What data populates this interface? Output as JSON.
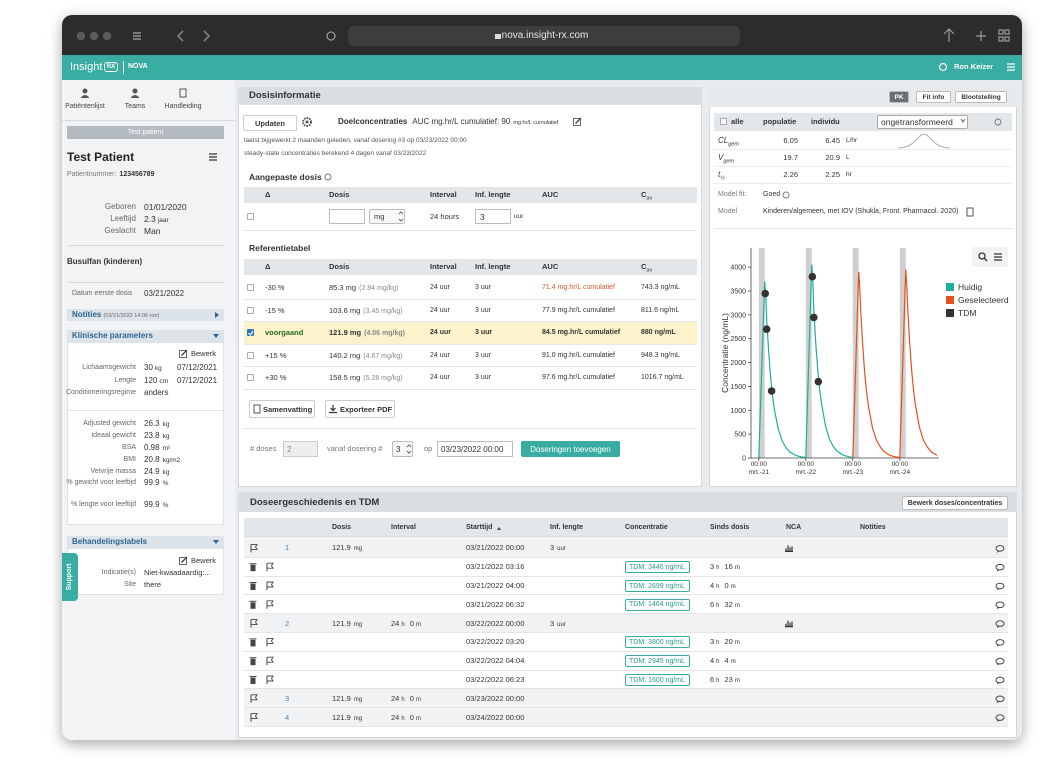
{
  "browser": {
    "url": "nova.insight-rx.com"
  },
  "appbar": {
    "brand": "Insight",
    "badge": "RX",
    "product": "NOVA",
    "user": "Ron Keizer"
  },
  "sidebar": {
    "nav": [
      "Patiëntenlijst",
      "Teams",
      "Handleiding"
    ],
    "patient_button": "Test patient",
    "name": "Test Patient",
    "patient_number_label": "Patientnummer:",
    "patient_number": "123456789",
    "demographics": [
      {
        "label": "Geboren",
        "value": "01/01/2020"
      },
      {
        "label": "Leeftijd",
        "value": "2.3",
        "unit": "jaar"
      },
      {
        "label": "Geslacht",
        "value": "Man"
      }
    ],
    "drug": "Busulfan (kinderen)",
    "first_dose": {
      "label": "Datum eerste dosis",
      "value": "03/21/2022"
    },
    "notes": {
      "title": "Notities",
      "date": "(03/21/2022 14:06 ron)"
    },
    "clinical": {
      "title": "Klinische parameters",
      "edit": "Bewerk",
      "measured": [
        {
          "label": "Lichaamsgewicht",
          "value": "30",
          "unit": "kg",
          "date": "07/12/2021"
        },
        {
          "label": "Lengte",
          "value": "120",
          "unit": "cm",
          "date": "07/12/2021"
        },
        {
          "label": "Conditioneringsregime",
          "value": "anders"
        }
      ],
      "derived": [
        {
          "label": "Adjusted gewicht",
          "value": "26.3",
          "unit": "kg"
        },
        {
          "label": "Ideaal gewicht",
          "value": "23.8",
          "unit": "kg"
        },
        {
          "label": "BSA",
          "value": "0.98",
          "unit": "m²"
        },
        {
          "label": "BMI",
          "value": "20.8",
          "unit": "kg/m2"
        },
        {
          "label": "Vetvrije massa",
          "value": "24.9",
          "unit": "kg"
        },
        {
          "label": "% gewicht voor leeftijd",
          "value": "99.9",
          "unit": "%"
        },
        {
          "label": "% lengte voor leeftijd",
          "value": "99.9",
          "unit": "%"
        }
      ]
    },
    "labels": {
      "title": "Behandelingslabels",
      "edit": "Bewerk",
      "items": [
        {
          "label": "Indicatie(s)",
          "value": "Niet-kwaadaardig:..."
        },
        {
          "label": "Site",
          "value": "there"
        }
      ]
    },
    "support": "Support"
  },
  "dosing": {
    "title": "Dosisinformatie",
    "update": "Updaten",
    "target_label": "Doelconcentraties",
    "target": "AUC mg.hr/L cumulatief: 90",
    "target_unit": "mg.hr/L cumulatief",
    "info": [
      "laatst bijgewerkt 2 maanden geleden, vanaf dosering #3 op 03/23/2022 00:00",
      "steady-state concentraties berekend 4 dagen vanaf 03/23/2022"
    ],
    "columns": [
      "Δ",
      "Dosis",
      "Interval",
      "Inf. lengte",
      "AUC"
    ],
    "cav": {
      "main": "C",
      "sub": "av"
    },
    "adjusted": {
      "title": "Aangepaste dosis",
      "unit": "mg",
      "interval": "24 hours",
      "inf": "3",
      "inf_unit": "uur"
    },
    "reference": {
      "title": "Referentietabel",
      "rows": [
        {
          "delta": "-30 %",
          "dose": "85.3 mg",
          "per_kg": "(2.84 mg/kg)",
          "interval": "24 uur",
          "inf": "3 uur",
          "auc": "71.4 mg.hr/L cumulatief",
          "cav": "743.3 ng/mL",
          "warning": true
        },
        {
          "delta": "-15 %",
          "dose": "103.6 mg",
          "per_kg": "(3.45 mg/kg)",
          "interval": "24 uur",
          "inf": "3 uur",
          "auc": "77.9 mg.hr/L cumulatief",
          "cav": "811.6 ng/mL"
        },
        {
          "delta": "voorgaand",
          "dose": "121.9 mg",
          "per_kg": "(4.06 mg/kg)",
          "interval": "24 uur",
          "inf": "3 uur",
          "auc": "84.5 mg.hr/L cumulatief",
          "cav": "880 ng/mL",
          "selected": true
        },
        {
          "delta": "+15 %",
          "dose": "140.2 mg",
          "per_kg": "(4.67 mg/kg)",
          "interval": "24 uur",
          "inf": "3 uur",
          "auc": "91.0 mg.hr/L cumulatief",
          "cav": "948.3 ng/mL"
        },
        {
          "delta": "+30 %",
          "dose": "158.5 mg",
          "per_kg": "(5.28 mg/kg)",
          "interval": "24 uur",
          "inf": "3 uur",
          "auc": "97.6 mg.hr/L cumulatief",
          "cav": "1016.7 ng/mL"
        }
      ]
    },
    "buttons": [
      "Samenvatting",
      "Exporteer PDF"
    ],
    "add": {
      "count_label": "# doses",
      "count": "2",
      "from_label": "vanaf dosering #",
      "from": "3",
      "on_label": "op",
      "date": "03/23/2022 00:00",
      "button": "Doseringen toevoegen"
    }
  },
  "pk": {
    "tabs": [
      "PK",
      "Fit info",
      "Blootstelling"
    ],
    "all": "alle",
    "population": "populatie",
    "individual": "individu",
    "transform": "ongetransformeerd",
    "params": [
      {
        "name": "CL",
        "sub": "gem",
        "pop": "6.05",
        "ind": "6.45",
        "unit": "L/hr"
      },
      {
        "name": "V",
        "sub": "gem",
        "pop": "19.7",
        "ind": "20.9",
        "unit": "L"
      },
      {
        "name": "t",
        "sub": "½",
        "pop": "2.26",
        "ind": "2.25",
        "unit": "hr"
      }
    ],
    "model_fit": {
      "label": "Model fit:",
      "value": "Goed"
    },
    "model": {
      "label": "Model",
      "value": "Kinderen/algemeen, met IOV (Shukla, Front. Pharmacol. 2020)"
    }
  },
  "chart_data": {
    "type": "line",
    "ylabel": "Concentratie (ng/mL)",
    "xlim": [
      -4,
      92
    ],
    "ylim": [
      0,
      4400
    ],
    "xticks": [
      {
        "value": 0,
        "label": "00:00\nmrt.-21"
      },
      {
        "value": 24,
        "label": "00:00\nmrt.-22"
      },
      {
        "value": 48,
        "label": "00:00\nmrt.-23"
      },
      {
        "value": 72,
        "label": "00:00\nmrt.-24"
      }
    ],
    "yticks": [
      0,
      500,
      1000,
      1500,
      2000,
      2500,
      3000,
      3500,
      4000
    ],
    "infusions": [
      [
        0,
        3
      ],
      [
        24,
        27
      ],
      [
        48,
        51
      ],
      [
        72,
        75
      ]
    ],
    "series": [
      {
        "name": "Huidig",
        "color": "#1fae9c",
        "x": [
          0,
          3,
          3.5,
          4,
          5,
          6,
          7,
          8,
          10,
          12,
          14,
          16,
          19,
          22,
          24,
          27,
          27.5,
          28,
          29,
          30,
          31,
          32,
          34,
          36,
          38,
          40,
          43,
          46,
          48
        ],
        "values": [
          0,
          3700,
          3400,
          2900,
          2250,
          1700,
          1300,
          1000,
          600,
          350,
          210,
          120,
          50,
          20,
          10,
          4050,
          3800,
          3150,
          2450,
          1900,
          1450,
          1150,
          680,
          400,
          240,
          140,
          60,
          25,
          10
        ]
      },
      {
        "name": "Geselecteerd",
        "color": "#e5501e",
        "x": [
          48,
          51,
          51.5,
          52,
          53,
          54,
          55,
          56,
          58,
          60,
          62,
          64,
          67,
          70,
          72,
          75,
          75.5,
          76,
          77,
          78,
          79,
          80,
          82,
          84,
          86,
          88,
          91
        ],
        "values": [
          0,
          3900,
          3600,
          3100,
          2400,
          1800,
          1400,
          1080,
          640,
          380,
          230,
          130,
          55,
          20,
          10,
          3950,
          3650,
          3150,
          2450,
          1850,
          1420,
          1100,
          650,
          380,
          230,
          130,
          55
        ]
      }
    ],
    "points": {
      "name": "TDM",
      "color": "#333333",
      "x": [
        3.27,
        4,
        6.53,
        27.33,
        28.07,
        30.38
      ],
      "values": [
        3446,
        2699,
        1404,
        3800,
        2945,
        1600
      ]
    }
  },
  "history": {
    "title": "Doseergeschiedenis en TDM",
    "edit": "Bewerk doses/concentraties",
    "columns": [
      "Dosis",
      "Interval",
      "Starttijd",
      "Inf. lengte",
      "Concentratie",
      "Sinds dosis",
      "NCA",
      "Notities"
    ],
    "h_unit": "h",
    "m_unit": "m",
    "rows": [
      {
        "kind": "dose",
        "number": "1",
        "dose": "121.9",
        "dose_unit": "mg",
        "start": "03/21/2022 00:00",
        "inf": "3",
        "inf_unit": "uur",
        "nca": true
      },
      {
        "kind": "tdm",
        "start": "03/21/2022 03:16",
        "conc": "TDM: 3446 ng/mL",
        "since_h": "3",
        "since_m": "16"
      },
      {
        "kind": "tdm",
        "start": "03/21/2022 04:00",
        "conc": "TDM: 2699 ng/mL",
        "since_h": "4",
        "since_m": "0"
      },
      {
        "kind": "tdm",
        "start": "03/21/2022 06:32",
        "conc": "TDM: 1404 ng/mL",
        "since_h": "6",
        "since_m": "32"
      },
      {
        "kind": "dose",
        "number": "2",
        "dose": "121.9",
        "dose_unit": "mg",
        "interval_h": "24",
        "interval_m": "0",
        "start": "03/22/2022 00:00",
        "inf": "3",
        "inf_unit": "uur",
        "nca": true
      },
      {
        "kind": "tdm",
        "start": "03/22/2022 03:20",
        "conc": "TDM: 3800 ng/mL",
        "since_h": "3",
        "since_m": "20"
      },
      {
        "kind": "tdm",
        "start": "03/22/2022 04:04",
        "conc": "TDM: 2945 ng/mL",
        "since_h": "4",
        "since_m": "4"
      },
      {
        "kind": "tdm",
        "start": "03/22/2022 06:23",
        "conc": "TDM: 1600 ng/mL",
        "since_h": "6",
        "since_m": "23"
      },
      {
        "kind": "dose",
        "number": "3",
        "dose": "121.9",
        "dose_unit": "mg",
        "interval_h": "24",
        "interval_m": "0",
        "start": "03/23/2022 00:00"
      },
      {
        "kind": "dose",
        "number": "4",
        "dose": "121.9",
        "dose_unit": "mg",
        "interval_h": "24",
        "interval_m": "0",
        "start": "03/24/2022 00:00"
      }
    ]
  }
}
